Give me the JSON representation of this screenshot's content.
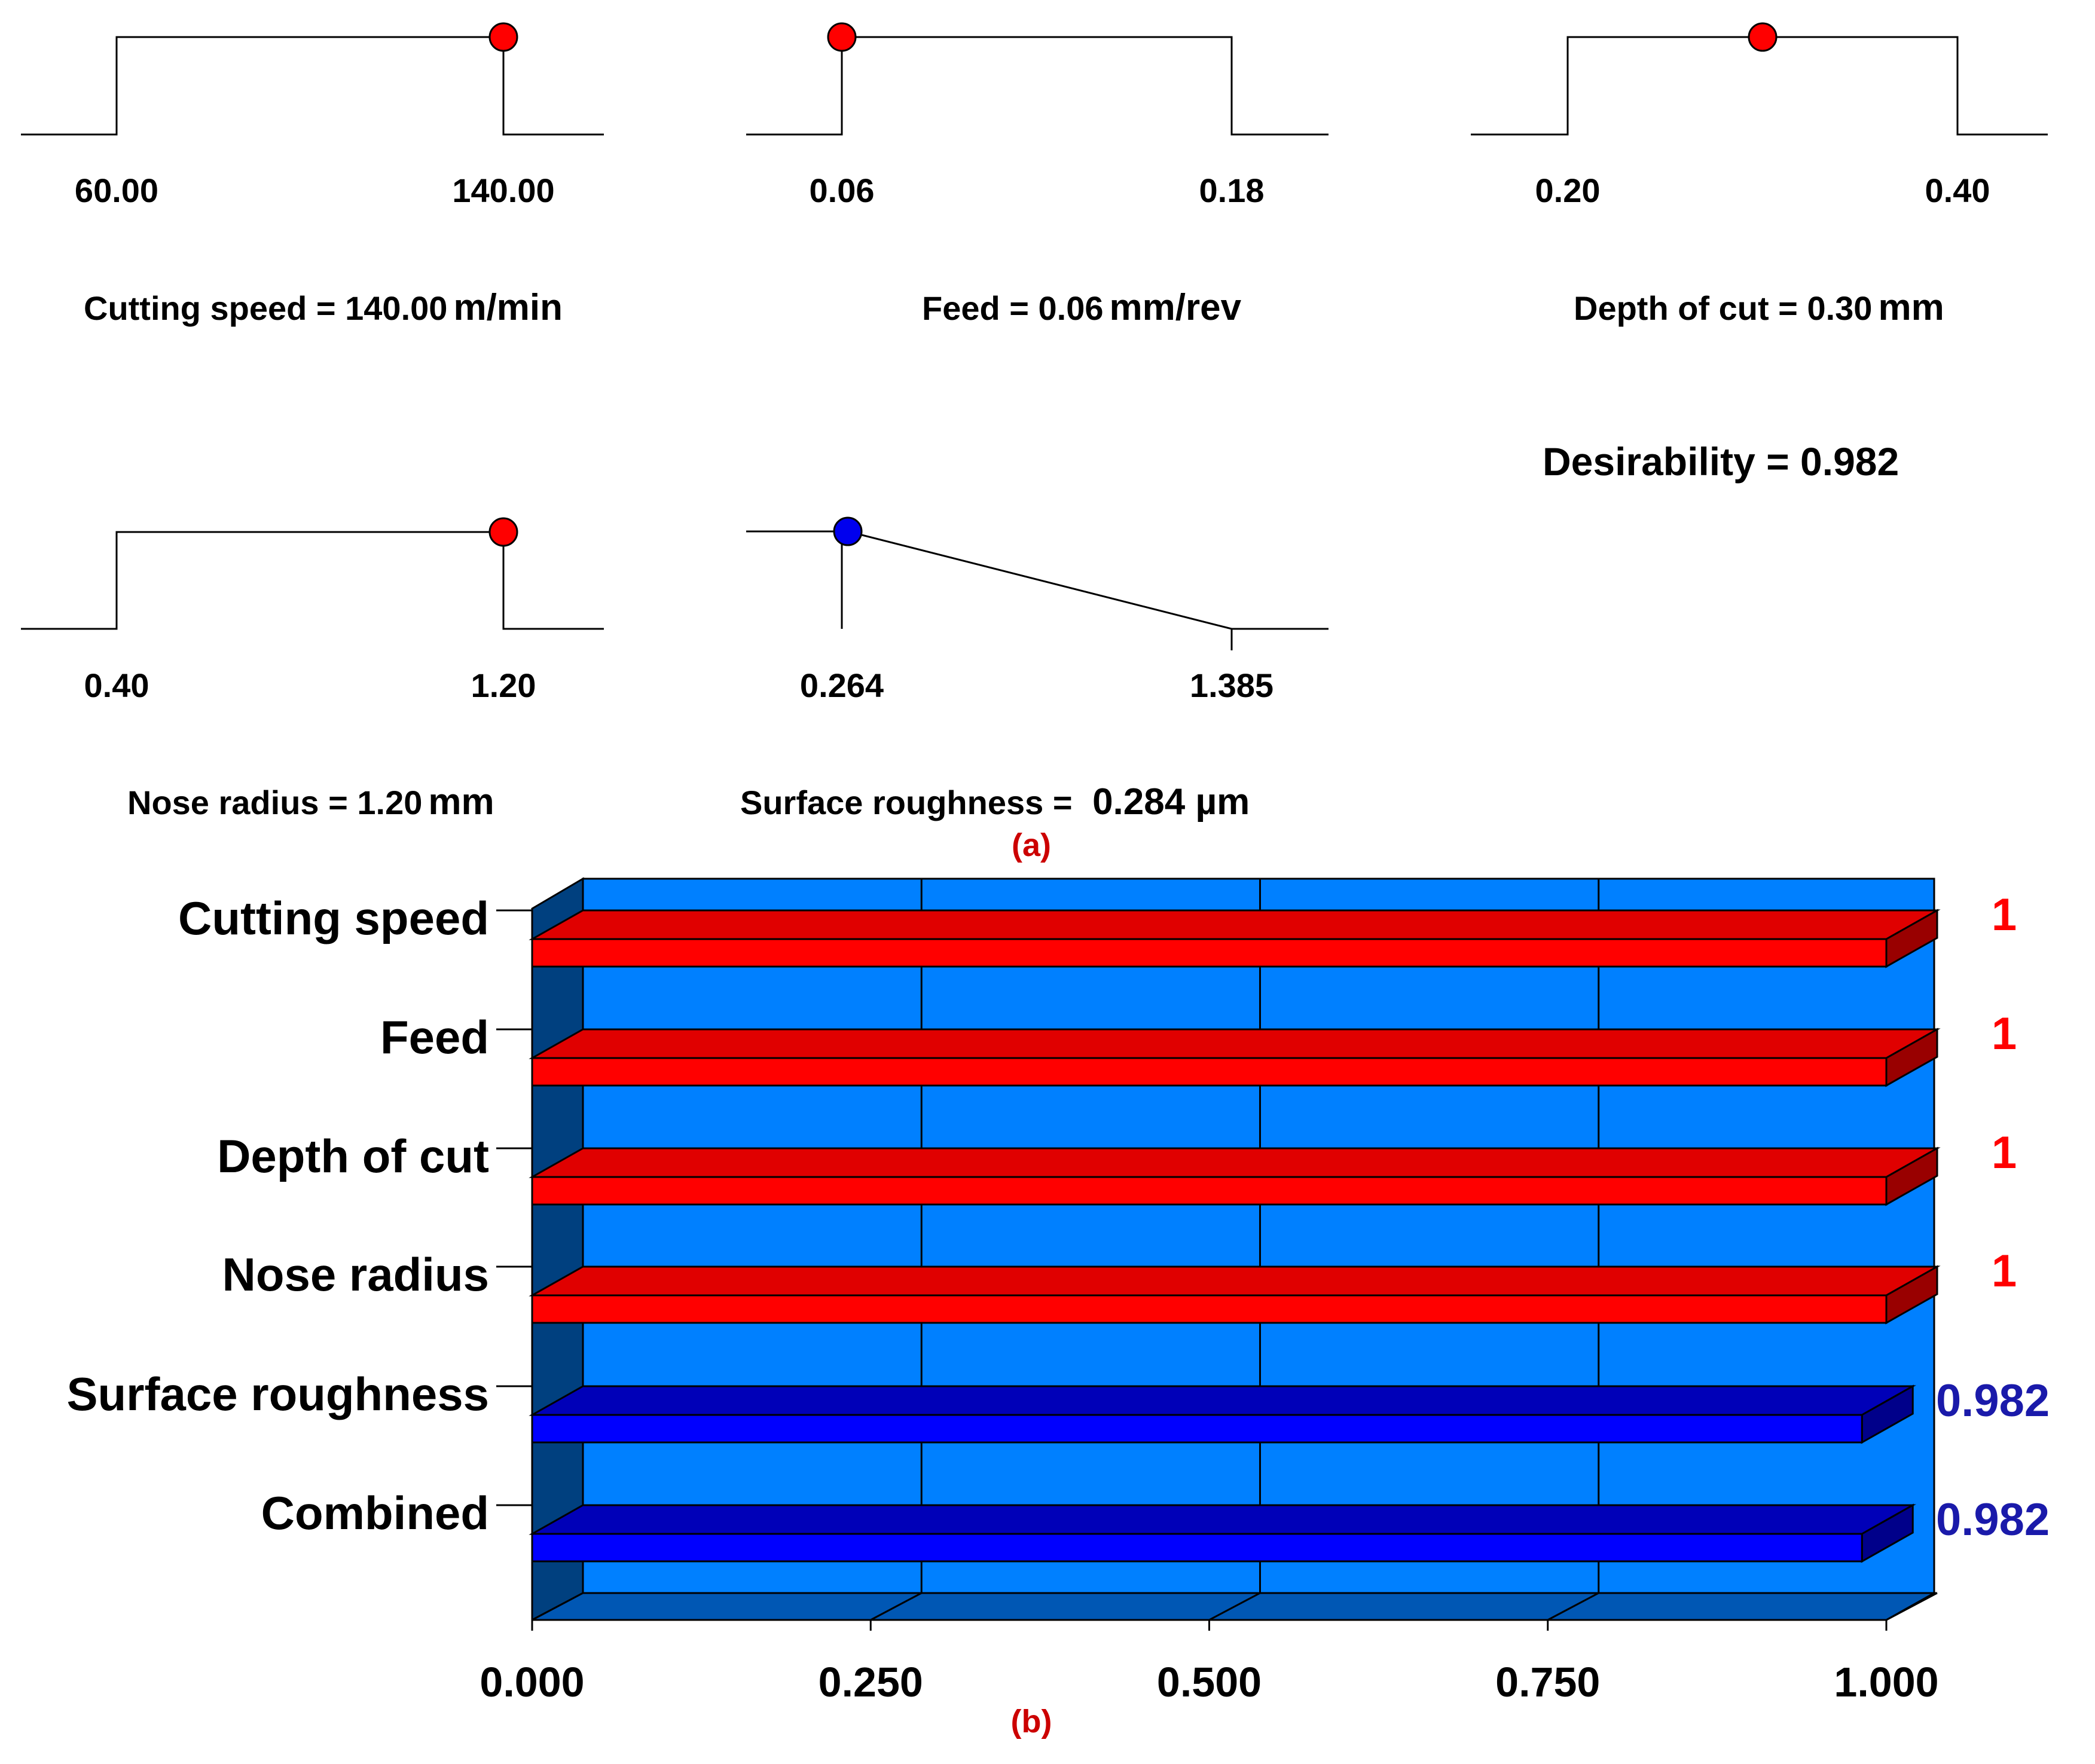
{
  "panel_a": {
    "caption": "(a)",
    "desirability_label": "Desirability = 0.982",
    "ramps": [
      {
        "name": "cutting-speed",
        "kind": "range",
        "low_label": "60.00",
        "high_label": "140.00",
        "min": 60,
        "max": 140,
        "value": 140,
        "marker_color": "#ff0000",
        "label_prefix": "Cutting speed = 140.00",
        "unit": "m/min"
      },
      {
        "name": "feed",
        "kind": "range",
        "low_label": "0.06",
        "high_label": "0.18",
        "min": 0.06,
        "max": 0.18,
        "value": 0.06,
        "marker_color": "#ff0000",
        "label_prefix": "Feed = 0.06",
        "unit": "mm/rev"
      },
      {
        "name": "depth-of-cut",
        "kind": "range",
        "low_label": "0.20",
        "high_label": "0.40",
        "min": 0.2,
        "max": 0.4,
        "value": 0.3,
        "marker_color": "#ff0000",
        "label_prefix": "Depth of cut = 0.30",
        "unit": "mm"
      },
      {
        "name": "nose-radius",
        "kind": "range",
        "low_label": "0.40",
        "high_label": "1.20",
        "min": 0.4,
        "max": 1.2,
        "value": 1.2,
        "marker_color": "#ff0000",
        "label_prefix": "Nose radius = 1.20",
        "unit": "mm"
      },
      {
        "name": "surface-roughness",
        "kind": "minimize",
        "low_label": "0.264",
        "high_label": "1.385",
        "min": 0.264,
        "max": 1.385,
        "value": 0.284,
        "marker_color": "#0000ee",
        "label_prefix": "Surface roughness = ",
        "unit": "0.284 µm"
      }
    ]
  },
  "chart_data": {
    "type": "bar",
    "orientation": "horizontal",
    "caption": "(b)",
    "categories": [
      "Cutting speed",
      "Feed",
      "Depth of cut",
      "Nose radius",
      "Surface roughness",
      "Combined"
    ],
    "values": [
      1,
      1,
      1,
      1,
      0.982,
      0.982
    ],
    "value_labels": [
      "1",
      "1",
      "1",
      "1",
      "0.982",
      "0.982"
    ],
    "xlim": [
      0,
      1
    ],
    "xticks": [
      "0.000",
      "0.250",
      "0.500",
      "0.750",
      "1.000"
    ],
    "grid": true,
    "colors": {
      "factor_bar": "#ff0000",
      "factor_label": "#ff0000",
      "response_bar": "#0000ff",
      "response_label": "#1a1aaa",
      "plot_background": "#0080ff"
    }
  }
}
